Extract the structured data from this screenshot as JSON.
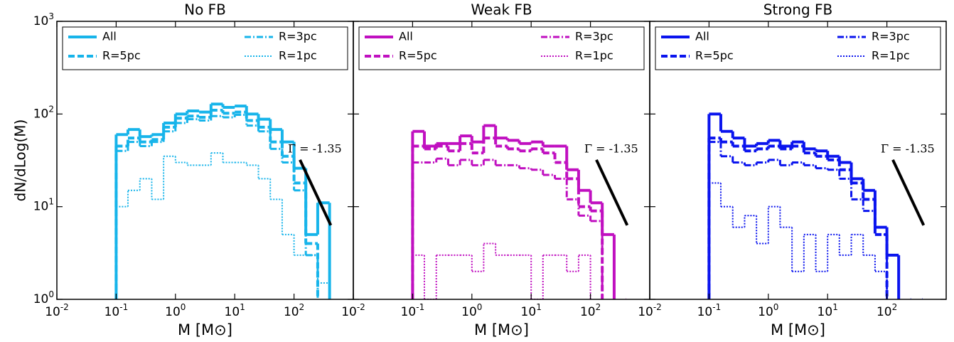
{
  "chart_data": [
    {
      "type": "histogram",
      "title": "No FB",
      "xlabel": "M [M⊙]",
      "ylabel": "dN/dLog(M)",
      "xscale": "log",
      "yscale": "log",
      "xlim": [
        0.01,
        1000
      ],
      "ylim": [
        1,
        1000
      ],
      "xticks": [
        {
          "value": 0.01,
          "label": "10",
          "exponent": "-2"
        },
        {
          "value": 0.1,
          "label": "10",
          "exponent": "-1"
        },
        {
          "value": 1,
          "label": "10",
          "exponent": "0"
        },
        {
          "value": 10,
          "label": "10",
          "exponent": "1"
        },
        {
          "value": 100,
          "label": "10",
          "exponent": "2"
        }
      ],
      "yticks": [
        {
          "value": 1,
          "label": "10",
          "exponent": "0"
        },
        {
          "value": 10,
          "label": "10",
          "exponent": "1"
        },
        {
          "value": 100,
          "label": "10",
          "exponent": "2"
        },
        {
          "value": 1000,
          "label": "10",
          "exponent": "3"
        }
      ],
      "bins": [
        0.1,
        0.158,
        0.251,
        0.398,
        0.631,
        1,
        1.58,
        2.51,
        3.98,
        6.31,
        10,
        15.8,
        25.1,
        39.8,
        63.1,
        100,
        158,
        251,
        398
      ],
      "series": [
        {
          "name": "All",
          "color": "#17b4ea",
          "linestyle": "solid",
          "values": [
            60,
            68,
            57,
            60,
            80,
            100,
            108,
            105,
            128,
            118,
            122,
            100,
            88,
            68,
            50,
            26,
            5,
            11
          ]
        },
        {
          "name": "R=5pc",
          "color": "#17b4ea",
          "linestyle": "dashed",
          "values": [
            45,
            55,
            50,
            53,
            72,
            90,
            95,
            92,
            110,
            102,
            105,
            85,
            72,
            50,
            35,
            18,
            4,
            null
          ]
        },
        {
          "name": "R=3pc",
          "color": "#17b4ea",
          "linestyle": "dashdot",
          "values": [
            40,
            50,
            45,
            50,
            65,
            80,
            88,
            85,
            95,
            92,
            98,
            75,
            65,
            42,
            30,
            15,
            3,
            null
          ]
        },
        {
          "name": "R=1pc",
          "color": "#17b4ea",
          "linestyle": "dotted",
          "values": [
            10,
            15,
            20,
            12,
            35,
            30,
            28,
            28,
            38,
            30,
            30,
            28,
            20,
            12,
            5,
            3,
            3,
            1.5
          ]
        }
      ],
      "reference_line": {
        "x": [
          126,
          417
        ],
        "y": [
          32,
          6.3
        ]
      },
      "annotation": "Γ = -1.35",
      "legend": "upper center"
    },
    {
      "type": "histogram",
      "title": "Weak FB",
      "xlabel": "M [M⊙]",
      "xscale": "log",
      "yscale": "log",
      "xlim": [
        0.01,
        1000
      ],
      "ylim": [
        1,
        1000
      ],
      "xticks": [
        {
          "value": 0.01,
          "label": "10",
          "exponent": "-2"
        },
        {
          "value": 0.1,
          "label": "10",
          "exponent": "-1"
        },
        {
          "value": 1,
          "label": "10",
          "exponent": "0"
        },
        {
          "value": 10,
          "label": "10",
          "exponent": "1"
        },
        {
          "value": 100,
          "label": "10",
          "exponent": "2"
        }
      ],
      "yticks": [
        1,
        10,
        100,
        1000
      ],
      "bins": [
        0.1,
        0.158,
        0.251,
        0.398,
        0.631,
        1,
        1.58,
        2.51,
        3.98,
        6.31,
        10,
        15.8,
        25.1,
        39.8,
        63.1,
        100,
        158,
        251,
        398
      ],
      "series": [
        {
          "name": "All",
          "color": "#c010c0",
          "linestyle": "solid",
          "values": [
            65,
            45,
            48,
            48,
            58,
            50,
            75,
            55,
            52,
            48,
            50,
            45,
            45,
            25,
            15,
            11,
            5,
            null
          ]
        },
        {
          "name": "R=5pc",
          "color": "#c010c0",
          "linestyle": "dashed",
          "values": [
            45,
            42,
            45,
            40,
            48,
            38,
            55,
            45,
            42,
            40,
            42,
            38,
            30,
            20,
            10,
            9,
            null,
            null
          ]
        },
        {
          "name": "R=3pc",
          "color": "#c010c0",
          "linestyle": "dashdot",
          "values": [
            30,
            30,
            33,
            28,
            32,
            28,
            32,
            28,
            28,
            26,
            25,
            22,
            20,
            12,
            8,
            7,
            null,
            null
          ]
        },
        {
          "name": "R=1pc",
          "color": "#c010c0",
          "linestyle": "dotted",
          "values": [
            3,
            1,
            3,
            3,
            3,
            2,
            4,
            3,
            3,
            3,
            1,
            3,
            3,
            2,
            3,
            null,
            null,
            null
          ]
        }
      ],
      "reference_line": {
        "x": [
          126,
          417
        ],
        "y": [
          32,
          6.3
        ]
      },
      "annotation": "Γ = -1.35",
      "legend": "upper center"
    },
    {
      "type": "histogram",
      "title": "Strong FB",
      "xlabel": "M [M⊙]",
      "xscale": "log",
      "yscale": "log",
      "xlim": [
        0.01,
        1000
      ],
      "ylim": [
        1,
        1000
      ],
      "xticks": [
        {
          "value": 0.01,
          "label": "10",
          "exponent": "-2"
        },
        {
          "value": 0.1,
          "label": "10",
          "exponent": "-1"
        },
        {
          "value": 1,
          "label": "10",
          "exponent": "0"
        },
        {
          "value": 10,
          "label": "10",
          "exponent": "1"
        },
        {
          "value": 100,
          "label": "10",
          "exponent": "2"
        }
      ],
      "yticks": [
        1,
        10,
        100,
        1000
      ],
      "bins": [
        0.1,
        0.158,
        0.251,
        0.398,
        0.631,
        1,
        1.58,
        2.51,
        3.98,
        6.31,
        10,
        15.8,
        25.1,
        39.8,
        63.1,
        100,
        158,
        251,
        398
      ],
      "series": [
        {
          "name": "All",
          "color": "#0a14ee",
          "linestyle": "solid",
          "values": [
            100,
            65,
            55,
            45,
            48,
            52,
            45,
            50,
            42,
            40,
            35,
            30,
            20,
            15,
            6,
            3,
            null,
            null
          ]
        },
        {
          "name": "R=5pc",
          "color": "#0a14ee",
          "linestyle": "dashed",
          "values": [
            55,
            50,
            45,
            40,
            42,
            45,
            42,
            45,
            38,
            35,
            32,
            25,
            18,
            12,
            5,
            null,
            null,
            null
          ]
        },
        {
          "name": "R=3pc",
          "color": "#0a14ee",
          "linestyle": "dashdot",
          "values": [
            50,
            35,
            30,
            28,
            30,
            32,
            28,
            30,
            28,
            26,
            25,
            20,
            12,
            9,
            5,
            null,
            null,
            null
          ]
        },
        {
          "name": "R=1pc",
          "color": "#0a14ee",
          "linestyle": "dotted",
          "values": [
            18,
            10,
            6,
            8,
            4,
            10,
            6,
            2,
            5,
            2,
            5,
            3,
            5,
            3,
            2,
            null,
            null,
            null
          ]
        }
      ],
      "reference_line": {
        "x": [
          126,
          417
        ],
        "y": [
          32,
          6.3
        ]
      },
      "annotation": "Γ = -1.35",
      "legend": "upper center"
    }
  ]
}
